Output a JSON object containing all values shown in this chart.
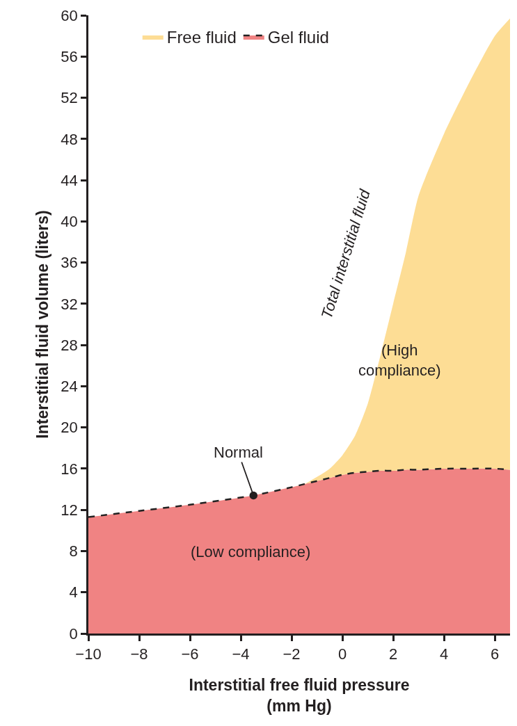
{
  "chart_data": {
    "type": "area",
    "xlabel": "Interstitial free fluid pressure\n(mm Hg)",
    "ylabel": "Interstitial fluid volume (liters)",
    "x": [
      -10,
      -8,
      -6,
      -3.5,
      -2,
      -1.5,
      -1,
      -0.5,
      0,
      0.5,
      1,
      1.5,
      2,
      2.5,
      3,
      4,
      5,
      6,
      6.6
    ],
    "series": [
      {
        "name": "Gel fluid",
        "color": "#f08383",
        "line_style": "dashed",
        "values": [
          11.3,
          11.9,
          12.5,
          13.4,
          14.2,
          14.5,
          14.8,
          15.1,
          15.4,
          15.6,
          15.7,
          15.8,
          15.8,
          15.9,
          15.9,
          16,
          16,
          16,
          15.9
        ]
      },
      {
        "name": "Free fluid",
        "color": "#fddd95",
        "values": [
          11.3,
          11.9,
          12.5,
          13.4,
          14.2,
          14.5,
          15.2,
          16,
          17.3,
          19.2,
          22.3,
          27,
          32,
          37,
          42.5,
          48.5,
          53.5,
          58,
          59.7
        ]
      }
    ],
    "xlim": [
      -10,
      6.6
    ],
    "ylim": [
      0,
      60
    ],
    "xticks": [
      {
        "value": -10,
        "label": "−10"
      },
      {
        "value": -8,
        "label": "−8"
      },
      {
        "value": -6,
        "label": "−6"
      },
      {
        "value": -4,
        "label": "−4"
      },
      {
        "value": -2,
        "label": "−2"
      },
      0,
      2,
      4,
      6
    ],
    "yticks": [
      0,
      4,
      8,
      12,
      16,
      20,
      24,
      28,
      32,
      36,
      40,
      44,
      48,
      52,
      56,
      60
    ],
    "grid": false,
    "legend": "top",
    "annotations": [
      {
        "text": "Normal",
        "x": -3.5,
        "y": 13.4
      },
      "Total interstitial fluid",
      "(Low compliance)",
      "(High compliance)"
    ]
  }
}
